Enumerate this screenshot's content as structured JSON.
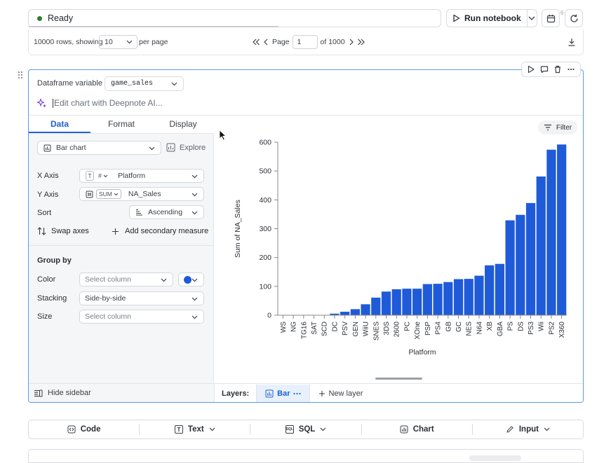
{
  "toolbar": {
    "status": "Ready",
    "run_label": "Run notebook",
    "badge_count": "6"
  },
  "pagination": {
    "rows_text": "10000 rows, showing",
    "per_page_value": "10",
    "per_page_label": "per page",
    "page_label": "Page",
    "page_value": "1",
    "of_label": "of 1000"
  },
  "block": {
    "df_label": "Dataframe variable",
    "df_value": "game_sales",
    "ai_placeholder": "Edit chart with Deepnote AI..."
  },
  "sidebar": {
    "tabs": [
      "Data",
      "Format",
      "Display"
    ],
    "chart_type": "Bar chart",
    "explore_label": "Explore",
    "x_axis_label": "X Axis",
    "x_axis_type_chip": "T",
    "x_axis_agg_chip": "#",
    "x_axis_value": "Platform",
    "y_axis_label": "Y Axis",
    "y_axis_agg": "SUM",
    "y_axis_value": "NA_Sales",
    "sort_label": "Sort",
    "sort_value": "Ascending",
    "swap_label": "Swap axes",
    "secondary_label": "Add secondary measure",
    "group_by_label": "Group by",
    "color_label": "Color",
    "color_placeholder": "Select column",
    "color_swatch": "#1f5bd8",
    "stacking_label": "Stacking",
    "stacking_value": "Side-by-side",
    "size_label": "Size",
    "size_placeholder": "Select column",
    "hide_sidebar_label": "Hide sidebar"
  },
  "layers": {
    "label": "Layers:",
    "active_layer": "Bar",
    "new_layer": "New layer"
  },
  "chart": {
    "filter_label": "Filter"
  },
  "chart_data": {
    "type": "bar",
    "categories": [
      "WS",
      "NG",
      "TG16",
      "SAT",
      "SCD",
      "DC",
      "PSV",
      "GEN",
      "WiiU",
      "SNES",
      "3DS",
      "2600",
      "PC",
      "XOne",
      "PSP",
      "PS4",
      "GB",
      "GC",
      "NES",
      "N64",
      "XB",
      "GBA",
      "PS",
      "DS",
      "PS3",
      "Wii",
      "PS2",
      "X360"
    ],
    "values": [
      0,
      0,
      0,
      0.7,
      1,
      5.4,
      12,
      21,
      38,
      61,
      82,
      90,
      92,
      92,
      108,
      109,
      115,
      125,
      126,
      137,
      173,
      178,
      329,
      348,
      389,
      481,
      574,
      592
    ],
    "xlabel": "Platform",
    "ylabel": "Sum of NA_Sales",
    "ylim": [
      0,
      600
    ],
    "yticks": [
      0,
      100,
      200,
      300,
      400,
      500,
      600
    ],
    "bar_color": "#1f5bd8",
    "grid": true
  },
  "add_bar": {
    "items": [
      "Code",
      "Text",
      "SQL",
      "Chart",
      "Input"
    ],
    "sql_icon_text": "SQL",
    "text_icon_text": "T"
  }
}
